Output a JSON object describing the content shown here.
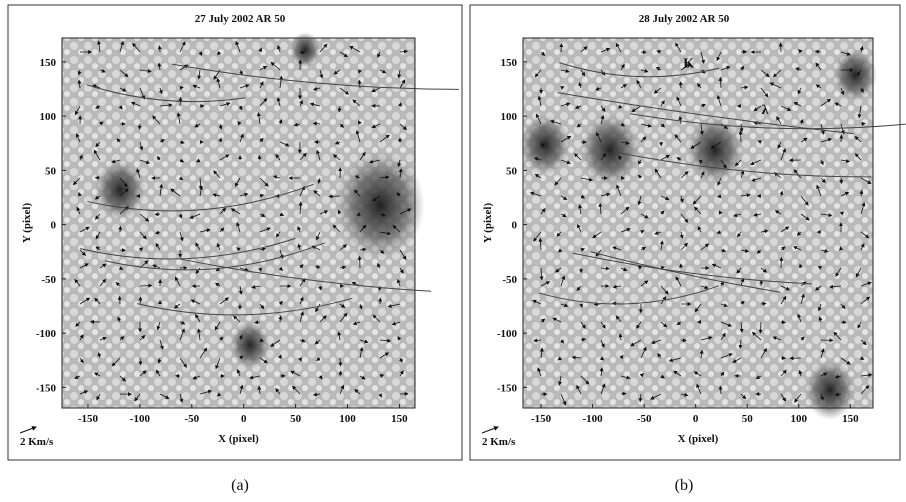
{
  "panels": [
    {
      "title": "27 July 2002   AR 50",
      "xlabel": "X (pixel)",
      "ylabel": "Y (pixel)",
      "scale_label": "2 Km/s",
      "caption": "(a)",
      "xlim": [
        -175,
        165
      ],
      "ylim": [
        -169,
        172
      ],
      "xticks": [
        -150,
        -100,
        -50,
        0,
        50,
        100,
        150
      ],
      "yticks": [
        150,
        100,
        50,
        0,
        -50,
        -100,
        -150
      ],
      "annotations": []
    },
    {
      "title": "28 July 2002   AR 50",
      "xlabel": "X (pixel)",
      "ylabel": "Y (pixel)",
      "scale_label": "2 Km/s",
      "caption": "(b)",
      "xlim": [
        -167.5,
        172
      ],
      "ylim": [
        -169,
        172
      ],
      "xticks": [
        -150,
        -100,
        -50,
        0,
        50,
        100,
        150
      ],
      "yticks": [
        150,
        100,
        50,
        0,
        -50,
        -100,
        -150
      ],
      "annotations": [
        {
          "text": "K",
          "x": -12,
          "y": 145
        },
        {
          "text": "λ",
          "x": 64,
          "y": 102
        }
      ]
    }
  ]
}
